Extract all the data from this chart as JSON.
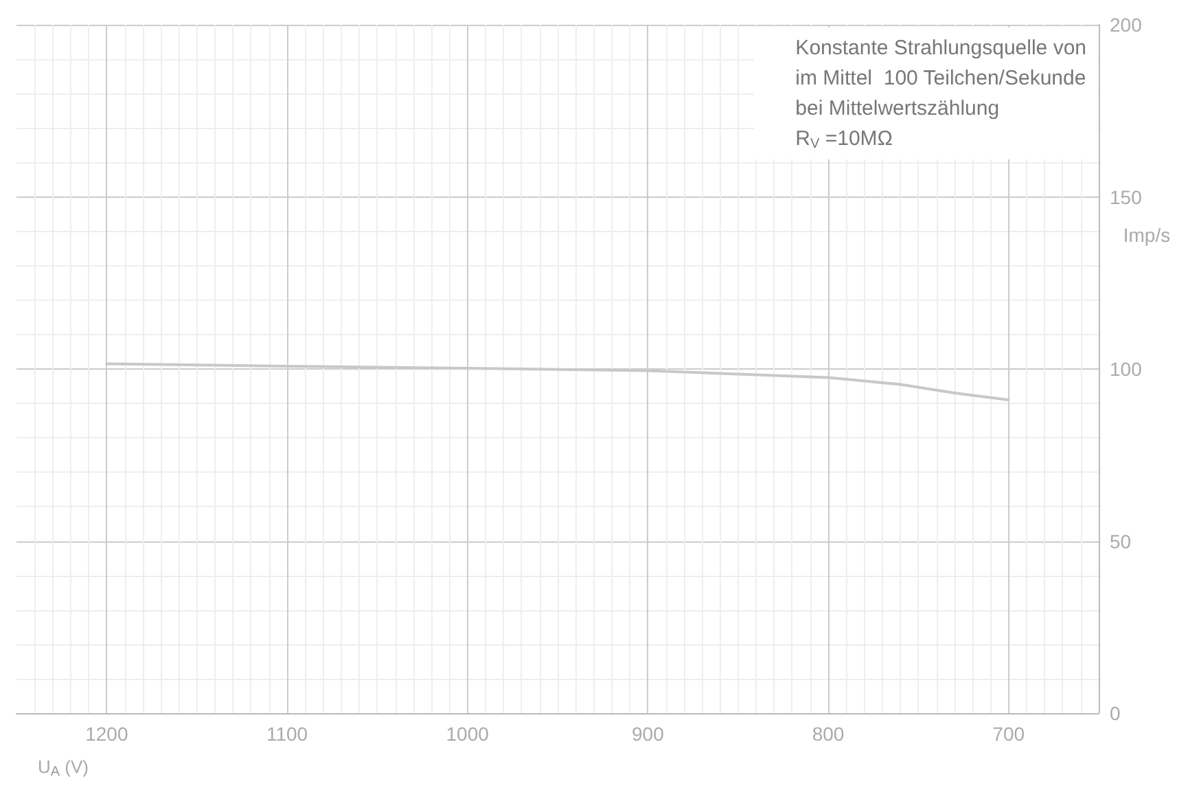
{
  "chart_data": {
    "type": "line",
    "xlabel": "U$_{A}$ (V)",
    "ylabel": "Imp/s",
    "annotations": [
      "Konstante Strahlungsquelle von\nim Mittel  100 Teilchen/Sekunde\nbei Mittelwertszählung\nR$_{V}$ =10MΩ"
    ],
    "x": [
      1200,
      1100,
      1000,
      900,
      800,
      760,
      730,
      700
    ],
    "series": [
      {
        "color": "#c8c8c8",
        "values": [
          101.5,
          100.8,
          100.2,
          99.5,
          97.5,
          95.5,
          93,
          91
        ]
      }
    ],
    "xlim": [
      1250,
      650
    ],
    "xticks": [
      1200,
      1100,
      1000,
      900,
      800,
      700
    ],
    "ylim": [
      0,
      200
    ],
    "yticks": [
      0,
      50,
      100,
      150,
      200
    ],
    "grid": true,
    "marker": "none",
    "line_style": "solid"
  }
}
